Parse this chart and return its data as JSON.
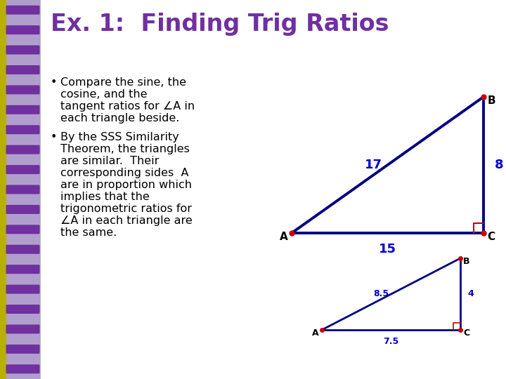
{
  "title": "Ex. 1:  Finding Trig Ratios",
  "title_color": "#7030A0",
  "title_fontsize": 24,
  "bg_color": "#FFFFFF",
  "spiral_color": "#7030A0",
  "spiral_bg": "#9B72CF",
  "text_color": "#000000",
  "bullet_lines": [
    [
      "Compare the sine, the",
      "cosine, and the",
      "tangent ratios for ∠A in",
      "each triangle beside."
    ],
    [
      "By the SSS Similarity",
      "Theorem, the triangles",
      "are similar.  Their",
      "corresponding sides  A",
      "are in proportion which",
      "implies that the",
      "trigonometric ratios for",
      "∠A in each triangle are",
      "the same."
    ]
  ],
  "tri1_hyp": "17",
  "tri1_vert": "8",
  "tri1_horiz": "15",
  "tri1_color": "#000080",
  "tri1_vertex_color": "#CC0000",
  "tri1_label_color": "#0000CC",
  "tri2_hyp": "8.5",
  "tri2_vert": "4",
  "tri2_horiz": "7.5",
  "tri2_color": "#000080",
  "tri2_vertex_color": "#CC0000",
  "tri2_label_color": "#0000CC",
  "right_angle_color": "#CC0000",
  "vertex_label_color": "#000000",
  "vertex_fontsize": 11,
  "side_label_fontsize": 13,
  "side_label_fontsize2": 9,
  "bullet_fontsize": 11.5
}
